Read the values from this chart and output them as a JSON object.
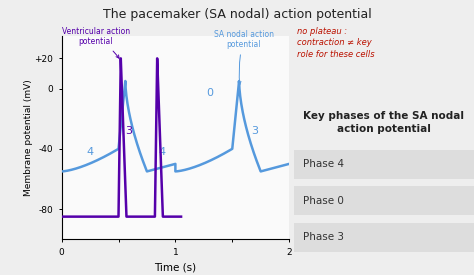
{
  "title": "The pacemaker (SA nodal) action potential",
  "xlabel": "Time (s)",
  "ylabel": "Membrane potential (mV)",
  "bg_color": "#eeeeee",
  "plot_bg_color": "#fafafa",
  "sa_color": "#5599dd",
  "ventricular_color": "#5500aa",
  "xlim": [
    0,
    2
  ],
  "ylim": [
    -100,
    35
  ],
  "yticks": [
    20,
    0,
    -40,
    -80
  ],
  "ytick_labels": [
    "+20",
    "0",
    "-40",
    "-80"
  ],
  "xticks": [
    0,
    0.5,
    1.0,
    1.5,
    2.0
  ],
  "xtick_labels": [
    "0",
    "",
    "1",
    "",
    "2"
  ],
  "annotation_ventricular": "Ventricular action\npotential",
  "annotation_sa": "SA nodal action\npotential",
  "handwritten_text": "no plateau :\ncontraction ≠ key\nrole for these cells",
  "key_phases_title": "Key phases of the SA nodal\naction potential",
  "phase4_label": "Phase 4",
  "phase0_label": "Phase 0",
  "phase3_label": "Phase 3"
}
